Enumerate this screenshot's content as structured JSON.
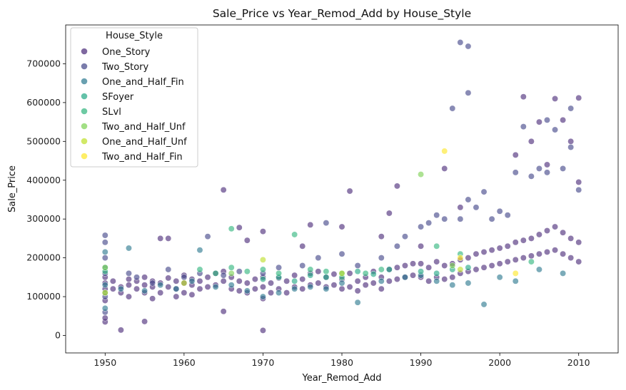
{
  "chart_data": {
    "type": "scatter",
    "title": "Sale_Price vs Year_Remod_Add by House_Style",
    "xlabel": "Year_Remod_Add",
    "ylabel": "Sale_Price",
    "xlim": [
      1945,
      2015
    ],
    "ylim": [
      -45000,
      800000
    ],
    "x_ticks": [
      1950,
      1960,
      1970,
      1980,
      1990,
      2000,
      2010
    ],
    "y_ticks": [
      0,
      100000,
      200000,
      300000,
      400000,
      500000,
      600000,
      700000
    ],
    "grid": false,
    "legend": {
      "title": "House_Style",
      "placement": "top-left"
    },
    "series": [
      {
        "name": "One_Story",
        "color": "#482878",
        "points": [
          [
            1950,
            35000
          ],
          [
            1950,
            45000
          ],
          [
            1950,
            90000
          ],
          [
            1950,
            120000
          ],
          [
            1950,
            135000
          ],
          [
            1950,
            150000
          ],
          [
            1951,
            120000
          ],
          [
            1951,
            140000
          ],
          [
            1952,
            14000
          ],
          [
            1952,
            110000
          ],
          [
            1952,
            125000
          ],
          [
            1953,
            100000
          ],
          [
            1953,
            130000
          ],
          [
            1953,
            145000
          ],
          [
            1954,
            120000
          ],
          [
            1954,
            140000
          ],
          [
            1955,
            36000
          ],
          [
            1955,
            110000
          ],
          [
            1955,
            130000
          ],
          [
            1955,
            150000
          ],
          [
            1956,
            95000
          ],
          [
            1956,
            125000
          ],
          [
            1956,
            140000
          ],
          [
            1957,
            110000
          ],
          [
            1957,
            135000
          ],
          [
            1957,
            250000
          ],
          [
            1958,
            125000
          ],
          [
            1958,
            148000
          ],
          [
            1958,
            250000
          ],
          [
            1959,
            100000
          ],
          [
            1959,
            120000
          ],
          [
            1959,
            140000
          ],
          [
            1960,
            110000
          ],
          [
            1960,
            135000
          ],
          [
            1960,
            155000
          ],
          [
            1961,
            105000
          ],
          [
            1961,
            130000
          ],
          [
            1961,
            145000
          ],
          [
            1962,
            120000
          ],
          [
            1962,
            140000
          ],
          [
            1963,
            125000
          ],
          [
            1963,
            150000
          ],
          [
            1964,
            130000
          ],
          [
            1964,
            160000
          ],
          [
            1965,
            62000
          ],
          [
            1965,
            140000
          ],
          [
            1965,
            165000
          ],
          [
            1965,
            375000
          ],
          [
            1966,
            120000
          ],
          [
            1966,
            150000
          ],
          [
            1967,
            115000
          ],
          [
            1967,
            140000
          ],
          [
            1967,
            278000
          ],
          [
            1968,
            110000
          ],
          [
            1968,
            135000
          ],
          [
            1968,
            245000
          ],
          [
            1969,
            120000
          ],
          [
            1969,
            145000
          ],
          [
            1970,
            13000
          ],
          [
            1970,
            95000
          ],
          [
            1970,
            125000
          ],
          [
            1970,
            150000
          ],
          [
            1970,
            268000
          ],
          [
            1971,
            110000
          ],
          [
            1971,
            135000
          ],
          [
            1972,
            120000
          ],
          [
            1972,
            148000
          ],
          [
            1973,
            110000
          ],
          [
            1973,
            140000
          ],
          [
            1974,
            125000
          ],
          [
            1974,
            155000
          ],
          [
            1975,
            120000
          ],
          [
            1975,
            145000
          ],
          [
            1975,
            230000
          ],
          [
            1976,
            130000
          ],
          [
            1976,
            160000
          ],
          [
            1976,
            285000
          ],
          [
            1977,
            135000
          ],
          [
            1977,
            165000
          ],
          [
            1978,
            125000
          ],
          [
            1978,
            150000
          ],
          [
            1979,
            130000
          ],
          [
            1979,
            158000
          ],
          [
            1980,
            120000
          ],
          [
            1980,
            145000
          ],
          [
            1980,
            280000
          ],
          [
            1981,
            125000
          ],
          [
            1981,
            160000
          ],
          [
            1981,
            372000
          ],
          [
            1982,
            115000
          ],
          [
            1982,
            140000
          ],
          [
            1983,
            130000
          ],
          [
            1983,
            150000
          ],
          [
            1984,
            135000
          ],
          [
            1984,
            165000
          ],
          [
            1985,
            120000
          ],
          [
            1985,
            150000
          ],
          [
            1985,
            255000
          ],
          [
            1986,
            140000
          ],
          [
            1986,
            170000
          ],
          [
            1986,
            315000
          ],
          [
            1987,
            145000
          ],
          [
            1987,
            175000
          ],
          [
            1987,
            385000
          ],
          [
            1988,
            150000
          ],
          [
            1988,
            180000
          ],
          [
            1989,
            155000
          ],
          [
            1989,
            185000
          ],
          [
            1990,
            150000
          ],
          [
            1990,
            185000
          ],
          [
            1990,
            230000
          ],
          [
            1991,
            140000
          ],
          [
            1991,
            175000
          ],
          [
            1992,
            150000
          ],
          [
            1992,
            190000
          ],
          [
            1993,
            145000
          ],
          [
            1993,
            180000
          ],
          [
            1993,
            430000
          ],
          [
            1994,
            150000
          ],
          [
            1994,
            185000
          ],
          [
            1995,
            160000
          ],
          [
            1995,
            195000
          ],
          [
            1995,
            330000
          ],
          [
            1996,
            165000
          ],
          [
            1996,
            200000
          ],
          [
            1997,
            170000
          ],
          [
            1997,
            210000
          ],
          [
            1998,
            175000
          ],
          [
            1998,
            215000
          ],
          [
            1999,
            180000
          ],
          [
            1999,
            220000
          ],
          [
            2000,
            185000
          ],
          [
            2000,
            225000
          ],
          [
            2001,
            190000
          ],
          [
            2001,
            230000
          ],
          [
            2002,
            195000
          ],
          [
            2002,
            240000
          ],
          [
            2002,
            465000
          ],
          [
            2003,
            200000
          ],
          [
            2003,
            245000
          ],
          [
            2003,
            615000
          ],
          [
            2004,
            205000
          ],
          [
            2004,
            250000
          ],
          [
            2004,
            500000
          ],
          [
            2005,
            210000
          ],
          [
            2005,
            260000
          ],
          [
            2005,
            550000
          ],
          [
            2006,
            215000
          ],
          [
            2006,
            270000
          ],
          [
            2006,
            440000
          ],
          [
            2007,
            220000
          ],
          [
            2007,
            280000
          ],
          [
            2007,
            610000
          ],
          [
            2008,
            210000
          ],
          [
            2008,
            265000
          ],
          [
            2008,
            555000
          ],
          [
            2009,
            200000
          ],
          [
            2009,
            250000
          ],
          [
            2009,
            500000
          ],
          [
            2010,
            190000
          ],
          [
            2010,
            240000
          ],
          [
            2010,
            395000
          ],
          [
            2010,
            612000
          ]
        ]
      },
      {
        "name": "Two_Story",
        "color": "#414487",
        "points": [
          [
            1950,
            60000
          ],
          [
            1950,
            100000
          ],
          [
            1950,
            160000
          ],
          [
            1950,
            200000
          ],
          [
            1950,
            240000
          ],
          [
            1950,
            258000
          ],
          [
            1953,
            160000
          ],
          [
            1954,
            150000
          ],
          [
            1956,
            135000
          ],
          [
            1958,
            170000
          ],
          [
            1960,
            150000
          ],
          [
            1962,
            160000
          ],
          [
            1963,
            255000
          ],
          [
            1965,
            155000
          ],
          [
            1967,
            165000
          ],
          [
            1970,
            160000
          ],
          [
            1972,
            175000
          ],
          [
            1975,
            180000
          ],
          [
            1977,
            200000
          ],
          [
            1978,
            290000
          ],
          [
            1980,
            210000
          ],
          [
            1982,
            180000
          ],
          [
            1985,
            200000
          ],
          [
            1987,
            230000
          ],
          [
            1988,
            255000
          ],
          [
            1990,
            280000
          ],
          [
            1991,
            290000
          ],
          [
            1992,
            310000
          ],
          [
            1993,
            300000
          ],
          [
            1994,
            585000
          ],
          [
            1995,
            755000
          ],
          [
            1995,
            300000
          ],
          [
            1996,
            745000
          ],
          [
            1996,
            625000
          ],
          [
            1996,
            350000
          ],
          [
            1997,
            330000
          ],
          [
            1998,
            370000
          ],
          [
            1999,
            300000
          ],
          [
            2000,
            320000
          ],
          [
            2001,
            310000
          ],
          [
            2002,
            420000
          ],
          [
            2003,
            538000
          ],
          [
            2004,
            410000
          ],
          [
            2005,
            430000
          ],
          [
            2006,
            555000
          ],
          [
            2006,
            420000
          ],
          [
            2007,
            530000
          ],
          [
            2008,
            430000
          ],
          [
            2009,
            585000
          ],
          [
            2009,
            485000
          ],
          [
            2010,
            375000
          ]
        ]
      },
      {
        "name": "One_and_Half_Fin",
        "color": "#2a788e",
        "points": [
          [
            1950,
            70000
          ],
          [
            1950,
            110000
          ],
          [
            1950,
            130000
          ],
          [
            1950,
            175000
          ],
          [
            1950,
            215000
          ],
          [
            1952,
            120000
          ],
          [
            1953,
            225000
          ],
          [
            1955,
            115000
          ],
          [
            1957,
            130000
          ],
          [
            1959,
            120000
          ],
          [
            1961,
            140000
          ],
          [
            1962,
            220000
          ],
          [
            1964,
            125000
          ],
          [
            1966,
            130000
          ],
          [
            1968,
            115000
          ],
          [
            1970,
            100000
          ],
          [
            1972,
            110000
          ],
          [
            1974,
            120000
          ],
          [
            1976,
            125000
          ],
          [
            1978,
            120000
          ],
          [
            1980,
            135000
          ],
          [
            1982,
            85000
          ],
          [
            1985,
            140000
          ],
          [
            1988,
            150000
          ],
          [
            1990,
            155000
          ],
          [
            1992,
            140000
          ],
          [
            1994,
            130000
          ],
          [
            1996,
            135000
          ],
          [
            1998,
            80000
          ],
          [
            2000,
            150000
          ],
          [
            2002,
            140000
          ],
          [
            2005,
            170000
          ],
          [
            2008,
            160000
          ]
        ]
      },
      {
        "name": "SFoyer",
        "color": "#22a884",
        "points": [
          [
            1970,
            145000
          ],
          [
            1972,
            150000
          ],
          [
            1974,
            140000
          ],
          [
            1976,
            155000
          ],
          [
            1978,
            150000
          ],
          [
            1980,
            160000
          ],
          [
            1982,
            165000
          ],
          [
            1984,
            158000
          ],
          [
            1986,
            170000
          ],
          [
            1990,
            165000
          ],
          [
            1992,
            160000
          ],
          [
            1994,
            170000
          ],
          [
            1996,
            175000
          ]
        ]
      },
      {
        "name": "SLvl",
        "color": "#2fb47c",
        "points": [
          [
            1950,
            165000
          ],
          [
            1962,
            170000
          ],
          [
            1964,
            160000
          ],
          [
            1966,
            275000
          ],
          [
            1966,
            175000
          ],
          [
            1968,
            165000
          ],
          [
            1970,
            170000
          ],
          [
            1972,
            160000
          ],
          [
            1974,
            260000
          ],
          [
            1976,
            170000
          ],
          [
            1978,
            165000
          ],
          [
            1980,
            150000
          ],
          [
            1983,
            160000
          ],
          [
            1985,
            170000
          ],
          [
            1992,
            230000
          ],
          [
            1995,
            210000
          ],
          [
            2004,
            190000
          ]
        ]
      },
      {
        "name": "Two_and_Half_Unf",
        "color": "#7ad151",
        "points": [
          [
            1950,
            175000
          ],
          [
            1966,
            160000
          ],
          [
            1990,
            415000
          ],
          [
            1994,
            180000
          ]
        ]
      },
      {
        "name": "One_and_Half_Unf",
        "color": "#bddf26",
        "points": [
          [
            1950,
            110000
          ],
          [
            1960,
            135000
          ],
          [
            1970,
            195000
          ],
          [
            1980,
            160000
          ],
          [
            1995,
            170000
          ]
        ]
      },
      {
        "name": "Two_and_Half_Fin",
        "color": "#fde725",
        "points": [
          [
            1993,
            475000
          ],
          [
            1995,
            200000
          ],
          [
            2002,
            160000
          ]
        ]
      }
    ]
  }
}
